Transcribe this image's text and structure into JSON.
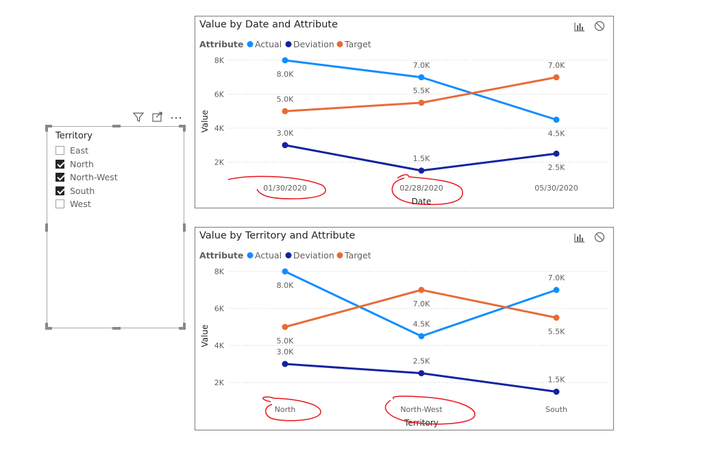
{
  "slicer": {
    "title": "Territory",
    "items": [
      {
        "label": "East",
        "checked": false
      },
      {
        "label": "North",
        "checked": true
      },
      {
        "label": "North-West",
        "checked": true
      },
      {
        "label": "South",
        "checked": true
      },
      {
        "label": "West",
        "checked": false
      }
    ],
    "toolbar_icons": [
      "filter-icon",
      "focus-mode-icon",
      "more-options-icon"
    ]
  },
  "colors": {
    "Actual": "#118dff",
    "Deviation": "#12239e",
    "Target": "#e66c37",
    "annotation": "#e8141b"
  },
  "chart_data": [
    {
      "type": "line",
      "title": "Value by Date and Attribute",
      "legend_title": "Attribute",
      "legend_position": "top-left",
      "xlabel": "Date",
      "ylabel": "Value",
      "categories": [
        "01/30/2020",
        "02/28/2020",
        "05/30/2020"
      ],
      "ylim": [
        0,
        8000
      ],
      "yticks": [
        2000,
        4000,
        6000,
        8000
      ],
      "ytick_labels": [
        "2K",
        "4K",
        "6K",
        "8K"
      ],
      "grid": true,
      "series": [
        {
          "name": "Actual",
          "values": [
            8000,
            7000,
            4500
          ],
          "labels": [
            "8.0K",
            "7.0K",
            "4.5K"
          ]
        },
        {
          "name": "Deviation",
          "values": [
            3000,
            1500,
            2500
          ],
          "labels": [
            "3.0K",
            "1.5K",
            "2.5K"
          ]
        },
        {
          "name": "Target",
          "values": [
            5000,
            5500,
            7000
          ],
          "labels": [
            "5.0K",
            "5.5K",
            "7.0K"
          ]
        }
      ],
      "icons": [
        "visual-type-icon",
        "no-filter-icon"
      ]
    },
    {
      "type": "line",
      "title": "Value by Territory and Attribute",
      "legend_title": "Attribute",
      "legend_position": "top-left",
      "xlabel": "Territory",
      "ylabel": "Value",
      "categories": [
        "North",
        "North-West",
        "South"
      ],
      "ylim": [
        0,
        8000
      ],
      "yticks": [
        2000,
        4000,
        6000,
        8000
      ],
      "ytick_labels": [
        "2K",
        "4K",
        "6K",
        "8K"
      ],
      "grid": true,
      "series": [
        {
          "name": "Actual",
          "values": [
            8000,
            4500,
            7000
          ],
          "labels": [
            "8.0K",
            "4.5K",
            "7.0K"
          ]
        },
        {
          "name": "Deviation",
          "values": [
            3000,
            2500,
            1500
          ],
          "labels": [
            "3.0K",
            "2.5K",
            "1.5K"
          ]
        },
        {
          "name": "Target",
          "values": [
            5000,
            7000,
            5500
          ],
          "labels": [
            "5.0K",
            "7.0K",
            "5.5K"
          ]
        }
      ],
      "icons": [
        "visual-type-icon",
        "no-filter-icon"
      ]
    }
  ]
}
